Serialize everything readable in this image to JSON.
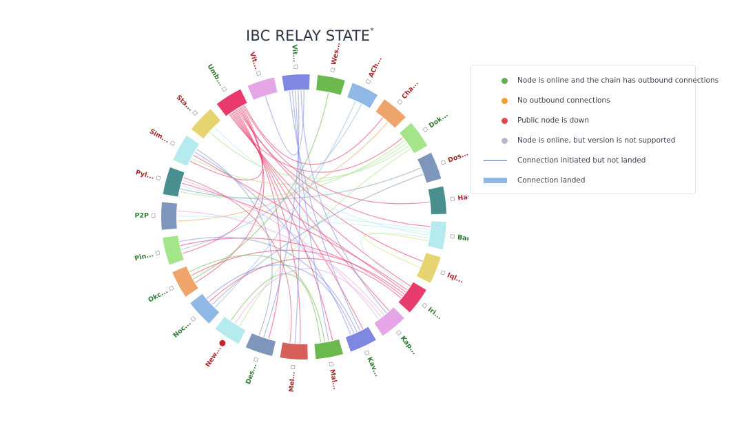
{
  "title": "IBC RELAY STATE",
  "title_mark": "*",
  "legend": [
    {
      "kind": "dot",
      "color": "#5fb04d",
      "text": "Node is online and the chain has outbound connections"
    },
    {
      "kind": "dot",
      "color": "#f0a030",
      "text": "No outbound connections"
    },
    {
      "kind": "dot",
      "color": "#e04848",
      "text": "Public node is down"
    },
    {
      "kind": "dot",
      "color": "#b8b8cc",
      "text": "Node is online, but version is not supported"
    },
    {
      "kind": "line",
      "color": "#9aa6e0",
      "text": "Connection initiated but not landed"
    },
    {
      "kind": "bar",
      "color": "#8fb8e6",
      "text": "Connection landed"
    }
  ],
  "nodes": [
    {
      "label": "Wes...",
      "color": "#6bb84f",
      "text_color": "#a52a2a",
      "status": "online"
    },
    {
      "label": "ACh...",
      "color": "#8fb8e6",
      "text_color": "#a52a2a",
      "status": "online"
    },
    {
      "label": "Cha...",
      "color": "#eea46a",
      "text_color": "#a52a2a",
      "status": "online"
    },
    {
      "label": "Dok...",
      "color": "#a5e58a",
      "text_color": "#2f7a2f",
      "status": "online"
    },
    {
      "label": "Dos...",
      "color": "#7f96bc",
      "text_color": "#a52a2a",
      "status": "online"
    },
    {
      "label": "Has...",
      "color": "#4a8f8f",
      "text_color": "#a52a2a",
      "status": "online"
    },
    {
      "label": "Ban...",
      "color": "#b5ebee",
      "text_color": "#2f7a2f",
      "status": "online"
    },
    {
      "label": "Iql...",
      "color": "#e5d470",
      "text_color": "#a52a2a",
      "status": "online"
    },
    {
      "label": "Iri...",
      "color": "#e83b6c",
      "text_color": "#2f7a2f",
      "status": "online"
    },
    {
      "label": "Kap...",
      "color": "#e5a6e8",
      "text_color": "#2f7a2f",
      "status": "online"
    },
    {
      "label": "Kav...",
      "color": "#7f87e3",
      "text_color": "#2f7a2f",
      "status": "online"
    },
    {
      "label": "Mal...",
      "color": "#6bb84f",
      "text_color": "#a52a2a",
      "status": "online"
    },
    {
      "label": "Mel...",
      "color": "#d65f5a",
      "text_color": "#a52a2a",
      "status": "online"
    },
    {
      "label": "Des...",
      "color": "#7f96bc",
      "text_color": "#2f7a2f",
      "status": "online"
    },
    {
      "label": "New...",
      "color": "#b5ebee",
      "text_color": "#a52a2a",
      "status": "down"
    },
    {
      "label": "Noc...",
      "color": "#8fb8e6",
      "text_color": "#2f7a2f",
      "status": "online"
    },
    {
      "label": "Okc...",
      "color": "#eea46a",
      "text_color": "#2f7a2f",
      "status": "online"
    },
    {
      "label": "Pin...",
      "color": "#a5e58a",
      "text_color": "#2f7a2f",
      "status": "online"
    },
    {
      "label": "P2P",
      "color": "#7f96bc",
      "text_color": "#2f7a2f",
      "status": "online"
    },
    {
      "label": "Pyl...",
      "color": "#4a8f8f",
      "text_color": "#a52a2a",
      "status": "online"
    },
    {
      "label": "Sim...",
      "color": "#b5ebee",
      "text_color": "#a52a2a",
      "status": "online"
    },
    {
      "label": "Sta...",
      "color": "#e5d470",
      "text_color": "#a52a2a",
      "status": "online"
    },
    {
      "label": "Umb...",
      "color": "#e83b6c",
      "text_color": "#2f7a2f",
      "status": "online"
    },
    {
      "label": "Vit...",
      "color": "#e5a6e8",
      "text_color": "#a52a2a",
      "status": "online"
    },
    {
      "label": "Vit...",
      "color": "#7f87e3",
      "text_color": "#2f7a2f",
      "status": "online"
    }
  ],
  "links": [
    [
      22,
      3
    ],
    [
      22,
      8
    ],
    [
      22,
      9
    ],
    [
      22,
      10
    ],
    [
      22,
      11
    ],
    [
      22,
      12
    ],
    [
      22,
      13
    ],
    [
      22,
      6
    ],
    [
      22,
      7
    ],
    [
      22,
      20
    ],
    [
      22,
      16
    ],
    [
      22,
      17
    ],
    [
      22,
      5
    ],
    [
      22,
      2
    ],
    [
      24,
      10
    ],
    [
      24,
      11
    ],
    [
      24,
      12
    ],
    [
      24,
      13
    ],
    [
      24,
      9
    ],
    [
      24,
      23
    ],
    [
      0,
      16
    ],
    [
      1,
      15
    ],
    [
      1,
      17
    ],
    [
      2,
      18
    ],
    [
      3,
      19
    ],
    [
      3,
      20
    ],
    [
      3,
      21
    ],
    [
      3,
      14
    ],
    [
      4,
      19
    ],
    [
      4,
      15
    ],
    [
      6,
      19
    ],
    [
      6,
      18
    ],
    [
      6,
      21
    ],
    [
      6,
      8
    ],
    [
      8,
      19
    ],
    [
      8,
      20
    ],
    [
      8,
      16
    ],
    [
      8,
      17
    ],
    [
      8,
      15
    ],
    [
      9,
      18
    ],
    [
      9,
      14
    ],
    [
      9,
      19
    ],
    [
      10,
      17
    ],
    [
      10,
      15
    ],
    [
      10,
      20
    ],
    [
      11,
      16
    ],
    [
      11,
      14
    ],
    [
      12,
      19
    ],
    [
      13,
      20
    ],
    [
      7,
      6
    ]
  ]
}
